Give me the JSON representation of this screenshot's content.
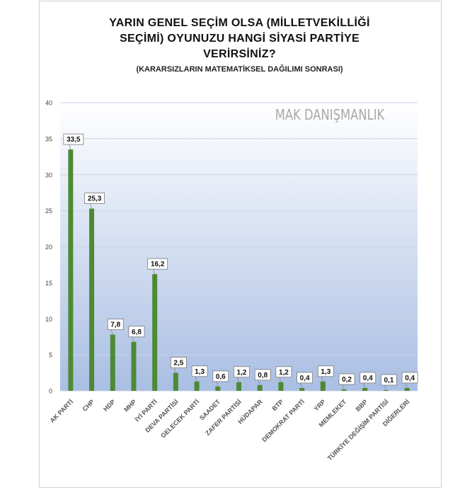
{
  "title_lines": [
    "YARIN GENEL SEÇİM OLSA (MİLLETVEKİLLİĞİ",
    "SEÇİMİ) OYUNUZU HANGİ SİYASİ PARTİYE",
    "VERİRSİNİZ?"
  ],
  "subtitle": "(KARARSIZLARIN MATEMATİKSEL DAĞILIMI SONRASI)",
  "watermark": "MAK DANIŞMANLIK",
  "colors": {
    "bar": "#4e8a34",
    "label_border": "#7a7a7a",
    "bg_top": "#ffffff",
    "bg_bottom": "#a9bee3"
  },
  "chart_data": {
    "type": "bar",
    "categories": [
      "AK PARTİ",
      "CHP",
      "HDP",
      "MHP",
      "İYİ PARTİ",
      "DEVA PARTİSİ",
      "GELECEK PARTİ",
      "SAADET",
      "ZAFER PARTİSİ",
      "HÜDAPAR",
      "BTP",
      "DEMOKRAT PARTİ",
      "YRP",
      "MEMLEKET",
      "BBP",
      "TÜRKİYE DEĞİŞİM PARTİSİ",
      "DİĞERLERİ"
    ],
    "values": [
      33.5,
      25.3,
      7.8,
      6.8,
      16.2,
      2.5,
      1.3,
      0.6,
      1.2,
      0.8,
      1.2,
      0.4,
      1.3,
      0.2,
      0.4,
      0.1,
      0.4
    ],
    "value_labels": [
      "33,5",
      "25,3",
      "7,8",
      "6,8",
      "16,2",
      "2,5",
      "1,3",
      "0,6",
      "1,2",
      "0,8",
      "1,2",
      "0,4",
      "1,3",
      "0,2",
      "0,4",
      "0,1",
      "0,4"
    ],
    "y_ticks": [
      0,
      5,
      10,
      15,
      20,
      25,
      30,
      35,
      40
    ],
    "ylim": [
      0,
      40
    ],
    "grid": true
  }
}
